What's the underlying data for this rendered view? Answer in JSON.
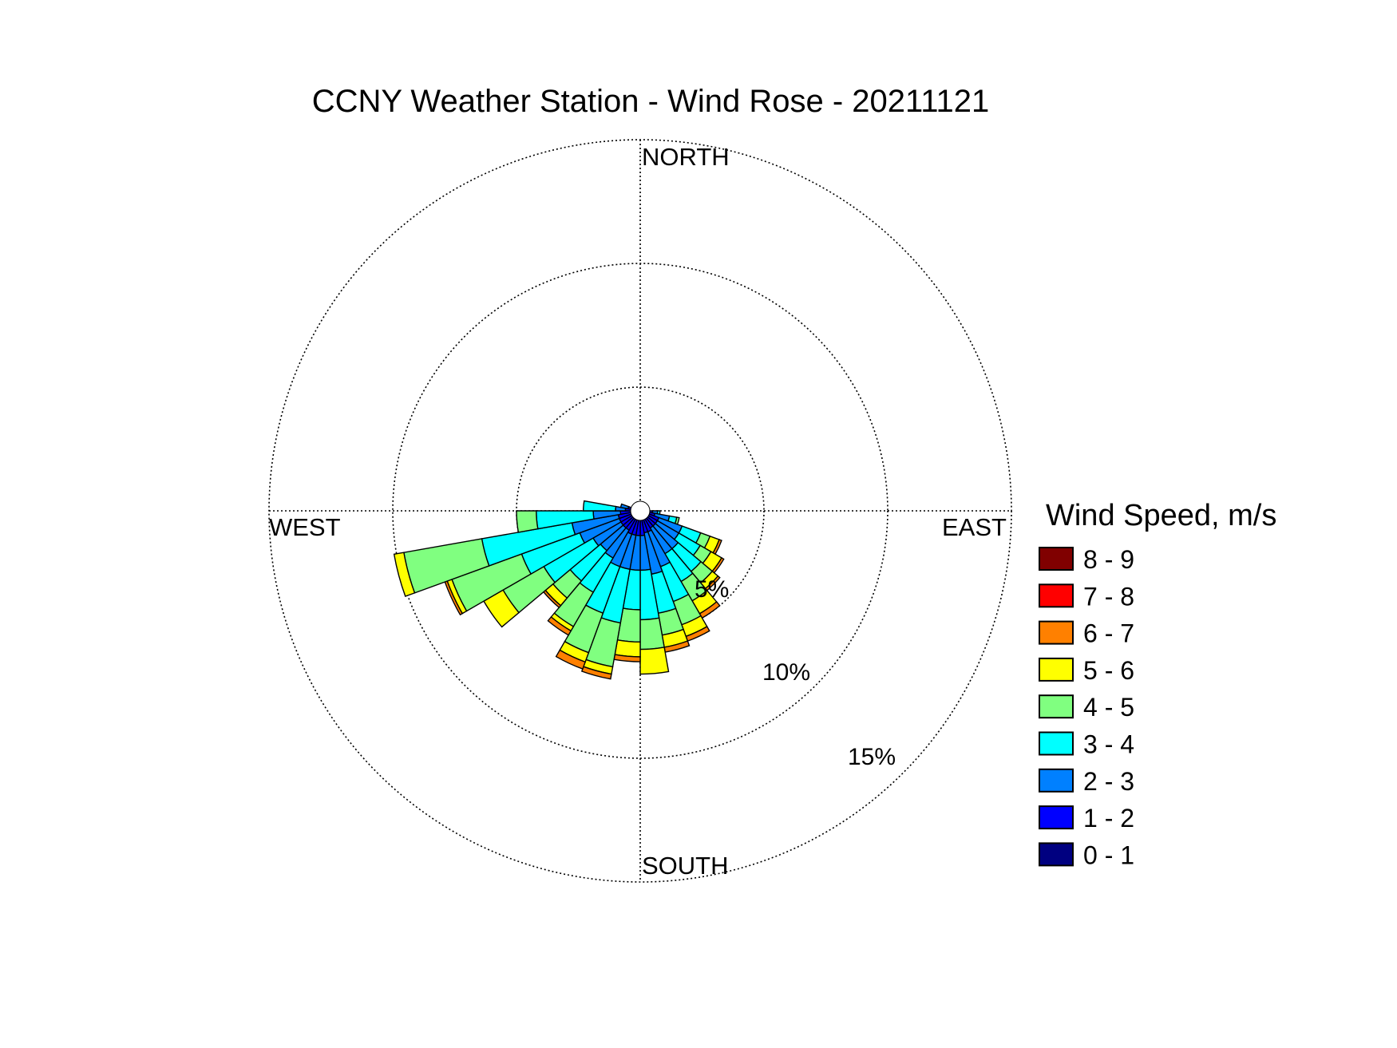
{
  "chart_data": {
    "type": "wind-rose",
    "title": "CCNY Weather Station - Wind Rose - 20211121",
    "directions": {
      "north": "NORTH",
      "east": "EAST",
      "south": "SOUTH",
      "west": "WEST"
    },
    "ring_labels": [
      "5%",
      "10%",
      "15%"
    ],
    "rings": [
      5,
      10,
      15
    ],
    "r_max": 15,
    "grid": "dotted",
    "legend": {
      "title": "Wind Speed, m/s",
      "placement": "right",
      "bins": [
        {
          "label": "8 - 9",
          "color": "#800000"
        },
        {
          "label": "7 - 8",
          "color": "#ff0000"
        },
        {
          "label": "6 - 7",
          "color": "#ff8000"
        },
        {
          "label": "5 - 6",
          "color": "#ffff00"
        },
        {
          "label": "4 - 5",
          "color": "#80ff80"
        },
        {
          "label": "3 - 4",
          "color": "#00ffff"
        },
        {
          "label": "2 - 3",
          "color": "#0080ff"
        },
        {
          "label": "1 - 2",
          "color": "#0000ff"
        },
        {
          "label": "0 - 1",
          "color": "#000080"
        }
      ]
    },
    "sector_width_deg": 10,
    "speed_bins_order": [
      "0 - 1",
      "1 - 2",
      "2 - 3",
      "3 - 4",
      "4 - 5",
      "5 - 6",
      "6 - 7",
      "7 - 8",
      "8 - 9"
    ],
    "sectors": [
      {
        "direction_deg": 95,
        "cumulative": [
          0.3,
          0.5,
          0.7,
          0.8
        ]
      },
      {
        "direction_deg": 105,
        "cumulative": [
          0.3,
          0.6,
          1.2,
          1.5,
          1.6
        ]
      },
      {
        "direction_deg": 115,
        "cumulative": [
          0.3,
          0.8,
          1.8,
          2.6,
          3.0,
          3.4,
          3.5
        ]
      },
      {
        "direction_deg": 125,
        "cumulative": [
          0.3,
          0.8,
          1.8,
          2.8,
          3.3,
          3.8,
          3.9
        ]
      },
      {
        "direction_deg": 135,
        "cumulative": [
          0.3,
          0.8,
          2.0,
          3.2,
          3.8,
          4.1,
          4.2
        ]
      },
      {
        "direction_deg": 145,
        "cumulative": [
          0.3,
          0.8,
          2.0,
          3.3,
          4.2,
          4.8,
          5.0
        ]
      },
      {
        "direction_deg": 155,
        "cumulative": [
          0.3,
          0.9,
          2.4,
          3.9,
          4.9,
          5.4,
          5.6
        ]
      },
      {
        "direction_deg": 165,
        "cumulative": [
          0.3,
          0.9,
          2.6,
          4.2,
          5.1,
          5.6,
          5.8
        ]
      },
      {
        "direction_deg": 175,
        "cumulative": [
          0.3,
          1.0,
          2.4,
          4.4,
          5.6,
          6.6
        ]
      },
      {
        "direction_deg": 185,
        "cumulative": [
          0.3,
          1.0,
          2.4,
          4.0,
          5.3,
          5.9,
          6.1
        ]
      },
      {
        "direction_deg": 195,
        "cumulative": [
          0.3,
          1.0,
          2.4,
          4.6,
          6.4,
          6.7,
          6.9
        ]
      },
      {
        "direction_deg": 205,
        "cumulative": [
          0.3,
          1.0,
          2.4,
          4.4,
          6.1,
          6.5,
          6.8
        ]
      },
      {
        "direction_deg": 215,
        "cumulative": [
          0.3,
          0.9,
          2.2,
          3.8,
          5.4,
          5.6,
          5.8
        ]
      },
      {
        "direction_deg": 225,
        "cumulative": [
          0.3,
          0.9,
          2.1,
          3.7,
          4.6,
          5.0,
          5.1
        ]
      },
      {
        "direction_deg": 235,
        "cumulative": [
          0.3,
          0.9,
          2.2,
          4.5,
          6.4,
          7.3
        ]
      },
      {
        "direction_deg": 245,
        "cumulative": [
          0.3,
          0.9,
          2.6,
          5.1,
          8.1,
          8.3,
          8.4
        ]
      },
      {
        "direction_deg": 255,
        "cumulative": [
          0.3,
          0.9,
          2.8,
          6.5,
          9.7,
          10.1
        ]
      },
      {
        "direction_deg": 265,
        "cumulative": [
          0.3,
          0.8,
          1.9,
          4.2,
          5.0
        ]
      },
      {
        "direction_deg": 275,
        "cumulative": [
          0.3,
          0.6,
          1.0,
          2.3
        ]
      },
      {
        "direction_deg": 285,
        "cumulative": [
          0.3,
          0.5,
          0.8
        ]
      }
    ]
  }
}
